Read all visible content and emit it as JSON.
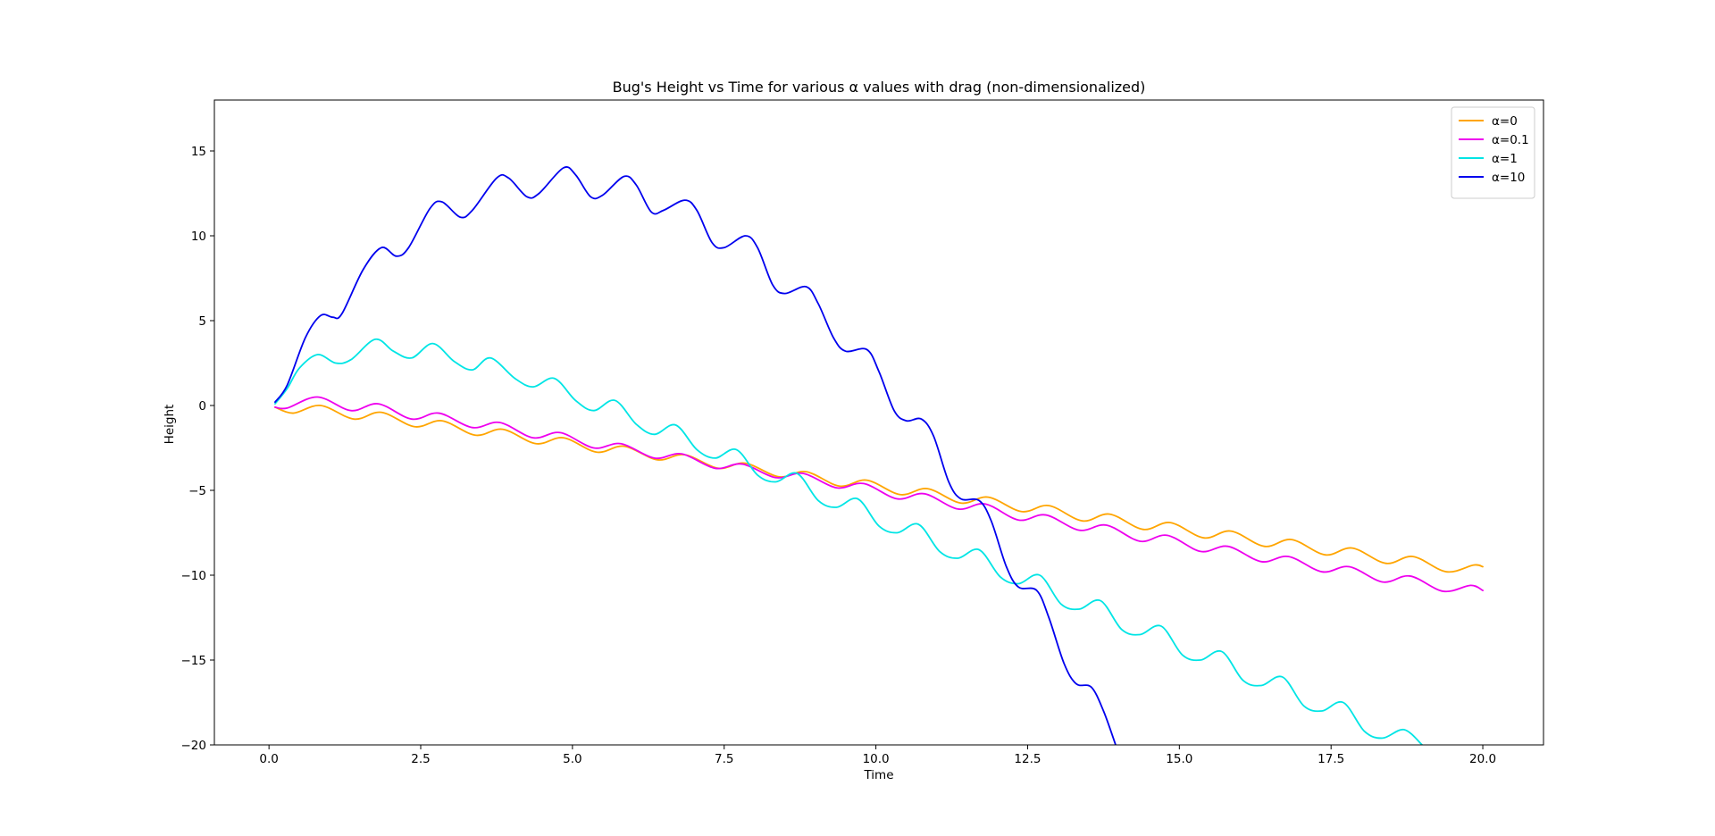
{
  "chart_data": {
    "type": "line",
    "title": "Bug's Height vs Time for various α values with drag (non-dimensionalized)",
    "xlabel": "Time",
    "ylabel": "Height",
    "xlim": [
      -0.9,
      21.0
    ],
    "ylim": [
      -20,
      18
    ],
    "xticks": [
      0.0,
      2.5,
      5.0,
      7.5,
      10.0,
      12.5,
      15.0,
      17.5,
      20.0
    ],
    "xtick_labels": [
      "0.0",
      "2.5",
      "5.0",
      "7.5",
      "10.0",
      "12.5",
      "15.0",
      "17.5",
      "20.0"
    ],
    "yticks": [
      -20,
      -15,
      -10,
      -5,
      0,
      5,
      10,
      15
    ],
    "ytick_labels": [
      "−20",
      "−15",
      "−10",
      "−5",
      "0",
      "5",
      "10",
      "15"
    ],
    "grid": false,
    "legend_position": "upper right",
    "series": [
      {
        "name": "α=0",
        "color": "#ffa500",
        "points": [
          [
            0.1,
            -0.1
          ],
          [
            0.4,
            -0.45
          ],
          [
            0.85,
            0.0
          ],
          [
            1.4,
            -0.8
          ],
          [
            1.85,
            -0.4
          ],
          [
            2.4,
            -1.25
          ],
          [
            2.85,
            -0.9
          ],
          [
            3.4,
            -1.75
          ],
          [
            3.85,
            -1.4
          ],
          [
            4.4,
            -2.25
          ],
          [
            4.85,
            -1.9
          ],
          [
            5.4,
            -2.75
          ],
          [
            5.85,
            -2.4
          ],
          [
            6.4,
            -3.2
          ],
          [
            6.85,
            -2.9
          ],
          [
            7.4,
            -3.7
          ],
          [
            7.85,
            -3.4
          ],
          [
            8.4,
            -4.2
          ],
          [
            8.85,
            -3.9
          ],
          [
            9.4,
            -4.75
          ],
          [
            9.85,
            -4.4
          ],
          [
            10.4,
            -5.25
          ],
          [
            10.85,
            -4.9
          ],
          [
            11.4,
            -5.75
          ],
          [
            11.85,
            -5.4
          ],
          [
            12.4,
            -6.25
          ],
          [
            12.85,
            -5.9
          ],
          [
            13.4,
            -6.8
          ],
          [
            13.85,
            -6.4
          ],
          [
            14.4,
            -7.3
          ],
          [
            14.85,
            -6.9
          ],
          [
            15.4,
            -7.8
          ],
          [
            15.85,
            -7.4
          ],
          [
            16.4,
            -8.3
          ],
          [
            16.85,
            -7.9
          ],
          [
            17.4,
            -8.8
          ],
          [
            17.85,
            -8.4
          ],
          [
            18.4,
            -9.3
          ],
          [
            18.85,
            -8.9
          ],
          [
            19.4,
            -9.8
          ],
          [
            19.85,
            -9.4
          ],
          [
            20.0,
            -9.5
          ]
        ]
      },
      {
        "name": "α=0.1",
        "color": "#ee00ee",
        "points": [
          [
            0.1,
            -0.1
          ],
          [
            0.3,
            -0.15
          ],
          [
            0.8,
            0.5
          ],
          [
            1.35,
            -0.3
          ],
          [
            1.8,
            0.1
          ],
          [
            2.35,
            -0.8
          ],
          [
            2.8,
            -0.45
          ],
          [
            3.35,
            -1.3
          ],
          [
            3.8,
            -1.0
          ],
          [
            4.35,
            -1.9
          ],
          [
            4.8,
            -1.6
          ],
          [
            5.35,
            -2.5
          ],
          [
            5.8,
            -2.25
          ],
          [
            6.35,
            -3.1
          ],
          [
            6.8,
            -2.85
          ],
          [
            7.35,
            -3.7
          ],
          [
            7.8,
            -3.45
          ],
          [
            8.35,
            -4.25
          ],
          [
            8.8,
            -4.0
          ],
          [
            9.35,
            -4.85
          ],
          [
            9.8,
            -4.6
          ],
          [
            10.35,
            -5.5
          ],
          [
            10.8,
            -5.2
          ],
          [
            11.35,
            -6.1
          ],
          [
            11.8,
            -5.8
          ],
          [
            12.35,
            -6.75
          ],
          [
            12.8,
            -6.45
          ],
          [
            13.35,
            -7.35
          ],
          [
            13.8,
            -7.05
          ],
          [
            14.35,
            -8.0
          ],
          [
            14.8,
            -7.65
          ],
          [
            15.35,
            -8.6
          ],
          [
            15.8,
            -8.3
          ],
          [
            16.35,
            -9.2
          ],
          [
            16.8,
            -8.9
          ],
          [
            17.35,
            -9.8
          ],
          [
            17.8,
            -9.5
          ],
          [
            18.35,
            -10.4
          ],
          [
            18.8,
            -10.05
          ],
          [
            19.35,
            -10.95
          ],
          [
            19.8,
            -10.6
          ],
          [
            20.0,
            -10.9
          ]
        ]
      },
      {
        "name": "α=1",
        "color": "#00e5e5",
        "points": [
          [
            0.1,
            0.1
          ],
          [
            0.3,
            1.0
          ],
          [
            0.5,
            2.2
          ],
          [
            0.8,
            3.0
          ],
          [
            1.1,
            2.5
          ],
          [
            1.35,
            2.7
          ],
          [
            1.75,
            3.9
          ],
          [
            2.05,
            3.2
          ],
          [
            2.35,
            2.8
          ],
          [
            2.7,
            3.65
          ],
          [
            3.05,
            2.6
          ],
          [
            3.35,
            2.1
          ],
          [
            3.65,
            2.8
          ],
          [
            4.05,
            1.6
          ],
          [
            4.35,
            1.1
          ],
          [
            4.7,
            1.6
          ],
          [
            5.05,
            0.3
          ],
          [
            5.35,
            -0.3
          ],
          [
            5.7,
            0.3
          ],
          [
            6.05,
            -1.1
          ],
          [
            6.35,
            -1.7
          ],
          [
            6.7,
            -1.15
          ],
          [
            7.05,
            -2.6
          ],
          [
            7.35,
            -3.1
          ],
          [
            7.7,
            -2.6
          ],
          [
            8.05,
            -4.1
          ],
          [
            8.35,
            -4.5
          ],
          [
            8.7,
            -4.0
          ],
          [
            9.05,
            -5.6
          ],
          [
            9.35,
            -6.0
          ],
          [
            9.7,
            -5.5
          ],
          [
            10.05,
            -7.1
          ],
          [
            10.35,
            -7.5
          ],
          [
            10.7,
            -7.0
          ],
          [
            11.05,
            -8.6
          ],
          [
            11.35,
            -9.0
          ],
          [
            11.7,
            -8.5
          ],
          [
            12.05,
            -10.1
          ],
          [
            12.35,
            -10.5
          ],
          [
            12.7,
            -10.0
          ],
          [
            13.05,
            -11.7
          ],
          [
            13.35,
            -12.0
          ],
          [
            13.7,
            -11.5
          ],
          [
            14.05,
            -13.2
          ],
          [
            14.35,
            -13.5
          ],
          [
            14.7,
            -13.0
          ],
          [
            15.05,
            -14.7
          ],
          [
            15.35,
            -15.0
          ],
          [
            15.7,
            -14.5
          ],
          [
            16.05,
            -16.2
          ],
          [
            16.35,
            -16.5
          ],
          [
            16.7,
            -16.0
          ],
          [
            17.05,
            -17.7
          ],
          [
            17.35,
            -18.0
          ],
          [
            17.7,
            -17.5
          ],
          [
            18.05,
            -19.2
          ],
          [
            18.35,
            -19.6
          ],
          [
            18.7,
            -19.1
          ],
          [
            19.0,
            -20.0
          ]
        ]
      },
      {
        "name": "α=10",
        "color": "#0000ee",
        "points": [
          [
            0.1,
            0.2
          ],
          [
            0.3,
            1.2
          ],
          [
            0.6,
            4.0
          ],
          [
            0.85,
            5.3
          ],
          [
            1.05,
            5.2
          ],
          [
            1.2,
            5.4
          ],
          [
            1.55,
            8.0
          ],
          [
            1.85,
            9.3
          ],
          [
            2.1,
            8.8
          ],
          [
            2.3,
            9.3
          ],
          [
            2.65,
            11.6
          ],
          [
            2.85,
            12.0
          ],
          [
            3.15,
            11.1
          ],
          [
            3.35,
            11.5
          ],
          [
            3.75,
            13.4
          ],
          [
            3.95,
            13.4
          ],
          [
            4.25,
            12.3
          ],
          [
            4.45,
            12.5
          ],
          [
            4.85,
            14.0
          ],
          [
            5.05,
            13.6
          ],
          [
            5.3,
            12.3
          ],
          [
            5.5,
            12.4
          ],
          [
            5.85,
            13.5
          ],
          [
            6.05,
            13.0
          ],
          [
            6.3,
            11.4
          ],
          [
            6.5,
            11.5
          ],
          [
            6.85,
            12.1
          ],
          [
            7.05,
            11.5
          ],
          [
            7.3,
            9.6
          ],
          [
            7.5,
            9.3
          ],
          [
            7.85,
            10.0
          ],
          [
            8.05,
            9.3
          ],
          [
            8.3,
            7.1
          ],
          [
            8.5,
            6.6
          ],
          [
            8.85,
            7.0
          ],
          [
            9.05,
            6.0
          ],
          [
            9.3,
            4.0
          ],
          [
            9.5,
            3.2
          ],
          [
            9.85,
            3.3
          ],
          [
            10.05,
            2.0
          ],
          [
            10.3,
            -0.3
          ],
          [
            10.5,
            -0.9
          ],
          [
            10.75,
            -0.8
          ],
          [
            10.95,
            -1.8
          ],
          [
            11.2,
            -4.5
          ],
          [
            11.4,
            -5.5
          ],
          [
            11.7,
            -5.6
          ],
          [
            11.9,
            -6.8
          ],
          [
            12.15,
            -9.5
          ],
          [
            12.35,
            -10.7
          ],
          [
            12.65,
            -10.9
          ],
          [
            12.85,
            -12.5
          ],
          [
            13.1,
            -15.2
          ],
          [
            13.3,
            -16.4
          ],
          [
            13.55,
            -16.6
          ],
          [
            13.75,
            -18.0
          ],
          [
            13.95,
            -20.0
          ]
        ]
      }
    ]
  }
}
